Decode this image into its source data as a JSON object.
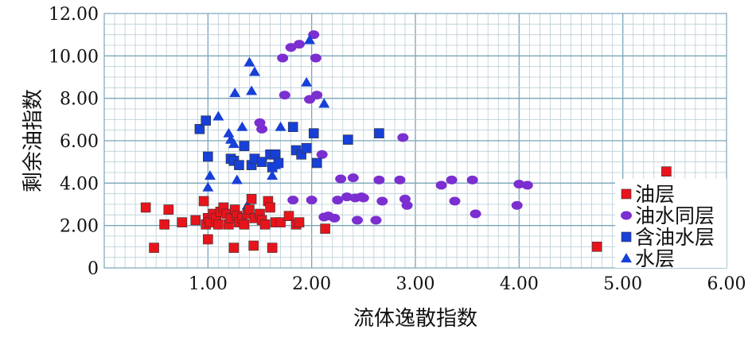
{
  "chart_data": {
    "type": "scatter",
    "title": "",
    "xlabel": "流体逸散指数",
    "ylabel": "剩余油指数",
    "xlim": [
      0,
      6
    ],
    "ylim": [
      0,
      12
    ],
    "x_ticks": [
      "1.00",
      "2.00",
      "3.00",
      "4.00",
      "5.00",
      "6.00"
    ],
    "y_ticks": [
      "0",
      "2.00",
      "4.00",
      "6.00",
      "8.00",
      "10.00",
      "12.00"
    ],
    "grid": true,
    "legend": "bottom-right",
    "series": [
      {
        "name": "油层",
        "marker": "square",
        "color": "#e8141c",
        "x": [
          0.4,
          0.48,
          0.58,
          0.62,
          0.75,
          0.88,
          0.96,
          0.98,
          1.0,
          1.0,
          1.02,
          1.05,
          1.08,
          1.1,
          1.12,
          1.15,
          1.18,
          1.2,
          1.22,
          1.25,
          1.26,
          1.28,
          1.3,
          1.33,
          1.35,
          1.38,
          1.4,
          1.42,
          1.44,
          1.45,
          1.5,
          1.52,
          1.55,
          1.58,
          1.6,
          1.62,
          1.65,
          1.7,
          1.78,
          1.85,
          1.88,
          2.13,
          4.75,
          5.42
        ],
        "y": [
          2.85,
          0.95,
          2.05,
          2.75,
          2.15,
          2.25,
          3.15,
          2.05,
          1.35,
          2.35,
          2.15,
          2.55,
          2.35,
          2.05,
          2.65,
          2.85,
          2.55,
          2.05,
          2.35,
          0.95,
          2.75,
          2.45,
          2.15,
          2.35,
          2.05,
          2.55,
          2.75,
          3.25,
          1.05,
          2.35,
          2.55,
          2.25,
          2.05,
          3.15,
          2.85,
          0.95,
          2.15,
          2.15,
          2.45,
          2.05,
          2.15,
          1.85,
          1.0,
          4.55
        ]
      },
      {
        "name": "油水同层",
        "marker": "circle",
        "color": "#7b2fd0",
        "x": [
          1.5,
          1.52,
          1.72,
          1.74,
          1.8,
          1.82,
          1.88,
          1.98,
          2.0,
          2.02,
          2.04,
          2.05,
          2.1,
          2.12,
          2.16,
          2.22,
          2.25,
          2.28,
          2.34,
          2.4,
          2.42,
          2.44,
          2.48,
          2.5,
          2.62,
          2.65,
          2.68,
          2.85,
          2.88,
          2.9,
          2.92,
          3.25,
          3.35,
          3.38,
          3.55,
          3.58,
          3.98,
          4.0,
          4.08
        ],
        "y": [
          6.85,
          6.55,
          9.9,
          8.15,
          10.4,
          3.2,
          10.55,
          7.95,
          3.2,
          11.0,
          9.9,
          8.15,
          5.35,
          2.4,
          2.45,
          2.35,
          3.2,
          4.2,
          3.35,
          4.25,
          3.3,
          2.25,
          3.35,
          3.3,
          2.25,
          4.15,
          3.15,
          4.15,
          6.15,
          3.25,
          2.95,
          3.9,
          4.15,
          3.15,
          4.15,
          2.55,
          2.95,
          3.95,
          3.9
        ]
      },
      {
        "name": "含油水层",
        "marker": "square",
        "color": "#1740d8",
        "x": [
          0.92,
          0.98,
          1.0,
          1.22,
          1.25,
          1.3,
          1.35,
          1.42,
          1.45,
          1.52,
          1.6,
          1.62,
          1.65,
          1.68,
          1.82,
          1.85,
          1.9,
          1.95,
          2.02,
          2.05,
          2.35,
          2.65
        ],
        "y": [
          6.55,
          6.95,
          5.25,
          5.15,
          5.05,
          4.85,
          5.75,
          4.85,
          5.15,
          5.0,
          5.35,
          4.75,
          5.35,
          4.95,
          6.65,
          5.55,
          5.35,
          5.65,
          6.35,
          4.95,
          6.05,
          6.35
        ]
      },
      {
        "name": "水层",
        "marker": "triangle",
        "color": "#1740d8",
        "x": [
          1.0,
          1.02,
          1.1,
          1.2,
          1.22,
          1.25,
          1.26,
          1.28,
          1.33,
          1.38,
          1.4,
          1.42,
          1.45,
          1.62,
          1.65,
          1.7,
          1.95,
          1.98,
          2.12
        ],
        "y": [
          3.8,
          4.35,
          7.15,
          6.35,
          6.05,
          5.85,
          8.25,
          4.15,
          6.65,
          2.95,
          9.7,
          8.35,
          9.25,
          4.35,
          4.85,
          6.65,
          8.75,
          10.75,
          7.75
        ]
      }
    ]
  }
}
